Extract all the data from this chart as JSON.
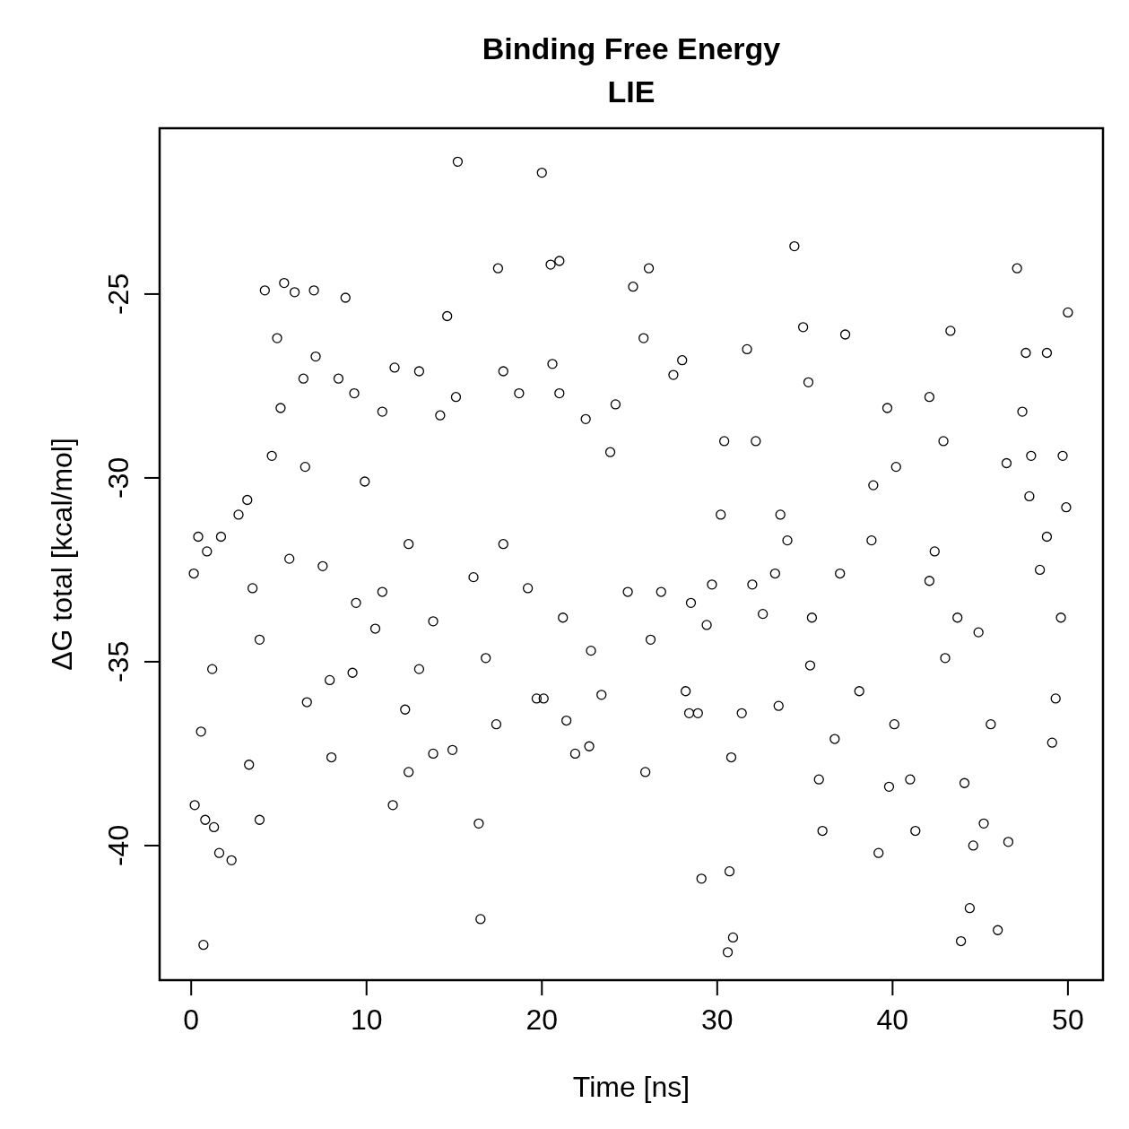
{
  "chart_data": {
    "type": "scatter",
    "title": "Binding Free Energy\nLIE",
    "xlabel": "Time [ns]",
    "ylabel": "ΔG total [kcal/mol]",
    "xlim": [
      -1.8,
      52
    ],
    "ylim": [
      -43.66,
      -20.49
    ],
    "xticks": [
      0,
      10,
      20,
      30,
      40,
      50
    ],
    "yticks": [
      -40,
      -35,
      -30,
      -25
    ],
    "grid": false,
    "marker": "circle",
    "series": [
      {
        "color": "#000000",
        "x": [
          0.15,
          0.2,
          0.4,
          0.56,
          0.7,
          0.8,
          0.9,
          1.2,
          1.3,
          1.6,
          1.7,
          2.3,
          2.7,
          3.2,
          4.2,
          5.3,
          5.9,
          7.0,
          8.8,
          6.4,
          5.1,
          4.9,
          4.6,
          6.5,
          7.1,
          8.4,
          9.3,
          9.9,
          7.9,
          6.6,
          8.0,
          9.2,
          3.9,
          3.3,
          3.9,
          10.5,
          11.6,
          10.9,
          12.4,
          12.2,
          12.4,
          11.5,
          13.0,
          14.2,
          14.6,
          15.1,
          15.2,
          14.9,
          13.8,
          16.5,
          16.4,
          16.8,
          17.5,
          17.8,
          18.7,
          17.4,
          20.0,
          20.5,
          21.0,
          20.6,
          21.0,
          19.7,
          20.1,
          21.4,
          21.9,
          22.7,
          23.4,
          22.5,
          23.9,
          24.2,
          25.2,
          26.1,
          25.8,
          25.9,
          26.8,
          27.5,
          28.0,
          28.2,
          28.4,
          28.9,
          29.1,
          29.4,
          30.2,
          30.4,
          30.6,
          30.7,
          30.9,
          30.8,
          31.4,
          31.7,
          32.2,
          32.6,
          33.3,
          33.5,
          34.0,
          34.4,
          34.9,
          35.2,
          35.8,
          36.0,
          36.7,
          37.3,
          38.1,
          38.9,
          39.2,
          39.7,
          39.8,
          40.1,
          40.2,
          41.0,
          41.3,
          42.1,
          42.9,
          43.3,
          43.9,
          44.4,
          44.1,
          44.6,
          45.2,
          45.6,
          46.0,
          46.5,
          46.6,
          47.1,
          47.4,
          47.6,
          47.8,
          47.9,
          48.8,
          49.1,
          49.3,
          49.6,
          49.7,
          49.9,
          50.0,
          48.8,
          48.4,
          44.9,
          43.0,
          43.7,
          42.1,
          42.4,
          38.8,
          37.0,
          35.3,
          35.4,
          33.6,
          32.0,
          29.7,
          28.5,
          26.2,
          24.9,
          22.8,
          21.2,
          19.2,
          17.8,
          16.1,
          13.8,
          13.0,
          10.9,
          9.4,
          7.5,
          5.6,
          3.5
        ],
        "values": [
          -32.6,
          -38.9,
          -31.6,
          -36.9,
          -42.7,
          -39.3,
          -32.0,
          -35.2,
          -39.5,
          -40.2,
          -31.6,
          -40.4,
          -31.0,
          -30.6,
          -24.9,
          -24.7,
          -24.95,
          -24.9,
          -25.1,
          -27.3,
          -28.1,
          -26.2,
          -29.4,
          -29.7,
          -26.7,
          -27.3,
          -27.7,
          -30.1,
          -35.5,
          -36.1,
          -37.6,
          -35.3,
          -39.3,
          -37.8,
          -34.4,
          -34.1,
          -27.0,
          -28.2,
          -31.8,
          -36.3,
          -38.0,
          -38.9,
          -27.1,
          -28.3,
          -25.6,
          -27.8,
          -21.4,
          -37.4,
          -37.5,
          -42.0,
          -39.4,
          -34.9,
          -24.3,
          -27.1,
          -27.7,
          -36.7,
          -21.7,
          -24.2,
          -24.1,
          -26.9,
          -27.7,
          -36.0,
          -36.0,
          -36.6,
          -37.5,
          -37.3,
          -35.9,
          -28.4,
          -29.3,
          -28.0,
          -24.8,
          -24.3,
          -26.2,
          -38.0,
          -33.1,
          -27.2,
          -26.8,
          -35.8,
          -36.4,
          -36.4,
          -40.9,
          -34.0,
          -31.0,
          -29.0,
          -42.9,
          -40.7,
          -42.5,
          -37.6,
          -36.4,
          -26.5,
          -29.0,
          -33.7,
          -32.6,
          -36.2,
          -31.7,
          -23.7,
          -25.9,
          -27.4,
          -38.2,
          -39.6,
          -37.1,
          -26.1,
          -35.8,
          -30.2,
          -40.2,
          -28.1,
          -38.4,
          -36.7,
          -29.7,
          -38.2,
          -39.6,
          -27.8,
          -29.0,
          -26.0,
          -42.6,
          -41.7,
          -38.3,
          -40.0,
          -39.4,
          -36.7,
          -42.3,
          -29.6,
          -39.9,
          -24.3,
          -28.2,
          -26.6,
          -30.5,
          -29.4,
          -26.6,
          -37.2,
          -36.0,
          -33.8,
          -29.4,
          -30.8,
          -25.5,
          -31.6,
          -32.5,
          -34.2,
          -34.9,
          -33.8,
          -32.8,
          -32.0,
          -31.7,
          -32.6,
          -35.1,
          -33.8,
          -31.0,
          -32.9,
          -32.9,
          -33.4,
          -34.4,
          -33.1,
          -34.7,
          -33.8,
          -33.0,
          -31.8,
          -32.7,
          -33.9,
          -35.2,
          -33.1,
          -33.4,
          -32.4,
          -32.2,
          -33.0
        ]
      }
    ]
  }
}
